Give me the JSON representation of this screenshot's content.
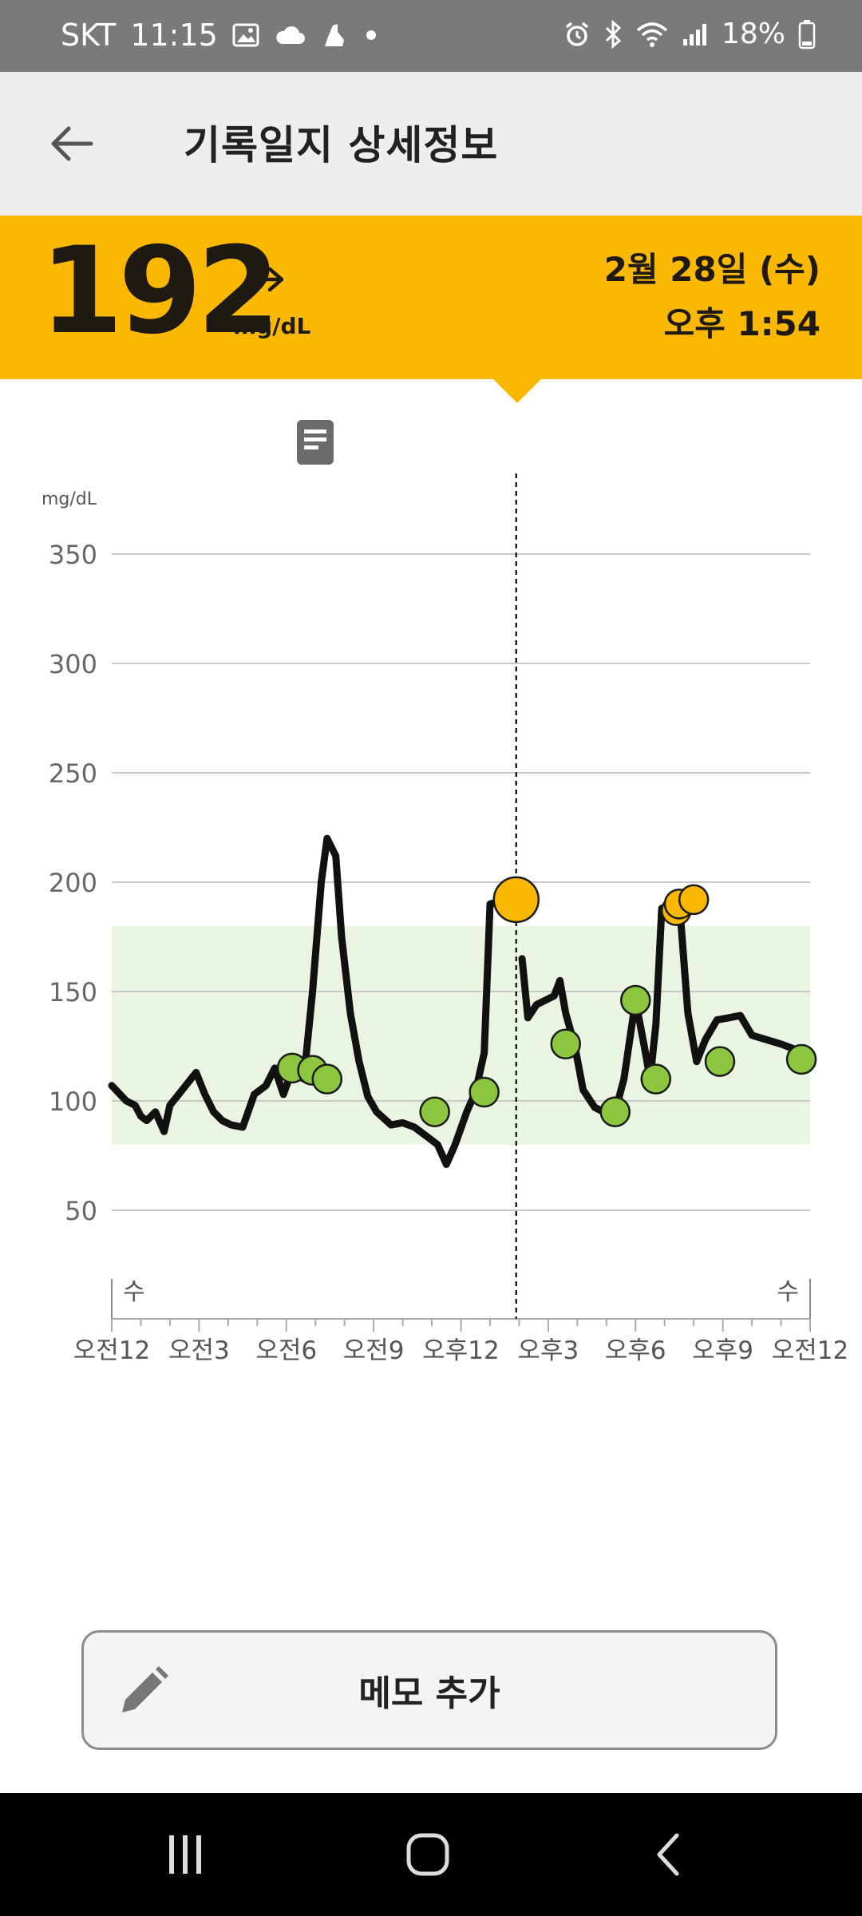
{
  "status_bar": {
    "carrier": "SKT",
    "time": "11:15",
    "battery": "18%",
    "left_icons": [
      "gallery-icon",
      "cloud-icon",
      "shoe-icon",
      "dot-icon"
    ],
    "right_icons": [
      "alarm-icon",
      "bluetooth-icon",
      "wifi-icon",
      "signal-icon",
      "battery-icon"
    ]
  },
  "header": {
    "title": "기록일지 상세정보",
    "back_icon": "back-arrow-icon"
  },
  "reading": {
    "value": "192",
    "unit": "mg/dL",
    "trend": "steady",
    "date": "2월 28일 (수)",
    "time": "오후 1:54",
    "color": "#fbb800"
  },
  "chart_data": {
    "type": "line",
    "y_unit_label": "mg/dL",
    "ylim": [
      0,
      350
    ],
    "yticks": [
      350,
      300,
      250,
      200,
      150,
      100,
      50
    ],
    "target_range": [
      80,
      180
    ],
    "x_tick_labels": [
      "오전12",
      "오전3",
      "오전6",
      "오전9",
      "오후12",
      "오후3",
      "오후6",
      "오후9",
      "오전12"
    ],
    "day_labels": [
      "수",
      "수"
    ],
    "selected_time_hours": 13.9,
    "series": [
      {
        "x": [
          0,
          0.5,
          0.8,
          1.0,
          1.2,
          1.5,
          1.8,
          2.0,
          2.3,
          2.6,
          2.9,
          3.2,
          3.5,
          3.8,
          4.1,
          4.5,
          4.9,
          5.3,
          5.6,
          5.9,
          6.2,
          6.6,
          6.9,
          7.2,
          7.4,
          7.7,
          7.9,
          8.2,
          8.5,
          8.8,
          9.1,
          9.6,
          10.0,
          10.4,
          10.8,
          11.2,
          11.5,
          11.8,
          12.2,
          12.5,
          12.8,
          13.0,
          13.5,
          13.9
        ],
        "y": [
          107,
          100,
          98,
          93,
          91,
          95,
          86,
          98,
          103,
          108,
          113,
          103,
          95,
          91,
          89,
          88,
          103,
          107,
          115,
          103,
          114,
          110,
          150,
          200,
          220,
          212,
          175,
          140,
          118,
          102,
          95,
          89,
          90,
          88,
          84,
          80,
          71,
          80,
          95,
          104,
          122,
          190,
          192,
          192
        ]
      },
      {
        "x": [
          14.1,
          14.3,
          14.6,
          14.9,
          15.2,
          15.4,
          15.6,
          15.9,
          16.2,
          16.6,
          16.9,
          17.2,
          17.4,
          17.6,
          18.0,
          18.3,
          18.5,
          18.7,
          18.9,
          19.2,
          19.5,
          19.8,
          20.1,
          20.4,
          20.8,
          21.2,
          21.6,
          22.0,
          22.5,
          23.0,
          23.6,
          24.0
        ],
        "y": [
          165,
          138,
          144,
          146,
          148,
          155,
          140,
          126,
          105,
          97,
          95,
          98,
          100,
          110,
          146,
          125,
          110,
          135,
          188,
          190,
          192,
          140,
          118,
          128,
          137,
          138,
          139,
          130,
          128,
          126,
          123,
          119
        ]
      }
    ],
    "markers_in_range": [
      {
        "x": 6.2,
        "y": 115
      },
      {
        "x": 6.9,
        "y": 114
      },
      {
        "x": 7.4,
        "y": 110
      },
      {
        "x": 11.1,
        "y": 95
      },
      {
        "x": 12.8,
        "y": 104
      },
      {
        "x": 15.6,
        "y": 126
      },
      {
        "x": 17.3,
        "y": 95
      },
      {
        "x": 18.0,
        "y": 146
      },
      {
        "x": 18.7,
        "y": 110
      },
      {
        "x": 20.9,
        "y": 118
      },
      {
        "x": 23.7,
        "y": 119
      }
    ],
    "markers_high": [
      {
        "x": 19.4,
        "y": 187
      },
      {
        "x": 19.5,
        "y": 190
      },
      {
        "x": 20.0,
        "y": 192
      }
    ],
    "selected_marker": {
      "x": 13.9,
      "y": 192
    },
    "colors": {
      "line": "#111111",
      "in_range_marker": "#8cc63f",
      "high_marker": "#fbb800",
      "target_band": "#eaf5e1"
    }
  },
  "memo_button": {
    "label": "메모 추가",
    "icon": "pencil-icon"
  },
  "nav_bar": {
    "buttons": [
      "recent-apps-icon",
      "home-icon",
      "back-nav-icon"
    ]
  }
}
